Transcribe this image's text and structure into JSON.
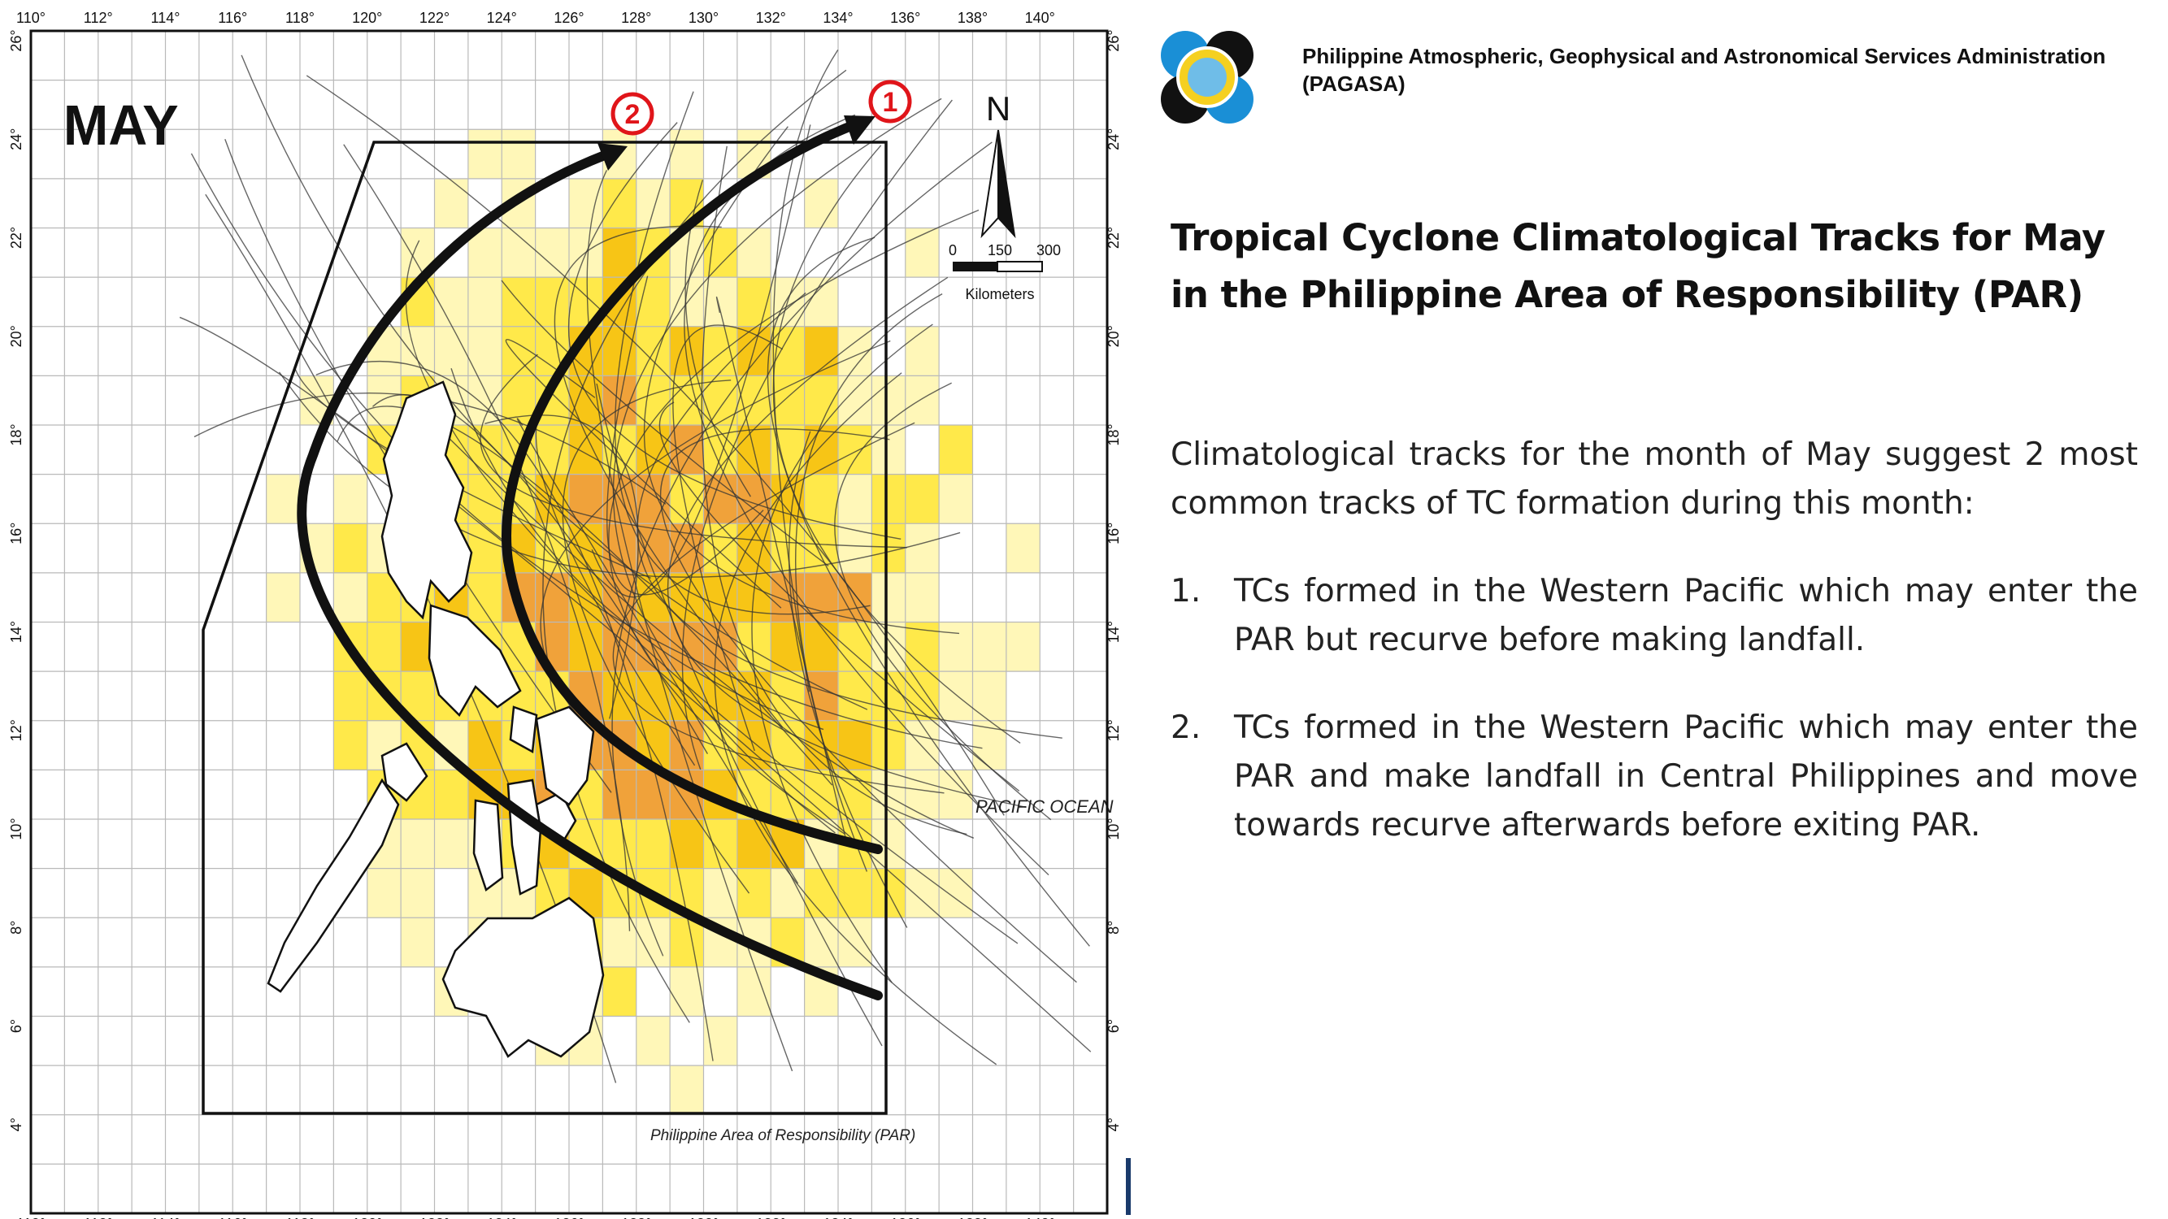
{
  "map": {
    "month_label": "MAY",
    "lon_ticks": [
      "110°",
      "112°",
      "114°",
      "116°",
      "118°",
      "120°",
      "122°",
      "124°",
      "126°",
      "128°",
      "130°",
      "132°",
      "134°",
      "136°",
      "138°",
      "140°"
    ],
    "lat_ticks": [
      "4°",
      "6°",
      "8°",
      "10°",
      "12°",
      "14°",
      "16°",
      "18°",
      "20°",
      "22°",
      "24°",
      "26°"
    ],
    "par_label": "Philippine Area of Responsibility (PAR)",
    "ocean_label": "PACIFIC OCEAN",
    "north_label": "N",
    "scale": {
      "ticks": [
        "0",
        "150",
        "300"
      ],
      "unit": "Kilometers"
    },
    "track_markers": [
      "1",
      "2"
    ],
    "colors": {
      "light": "#fff7b8",
      "medium": "#ffe94a",
      "strong": "#f7c516",
      "intense": "#f0a23a",
      "max": "#e07d3a",
      "marker": "#e0151a"
    }
  },
  "header": {
    "org_name": "Philippine Atmospheric, Geophysical and Astronomical Services Administration (PAGASA)",
    "logo": "pagasa-logo"
  },
  "title": {
    "line1": "Tropical Cyclone Climatological Tracks for May",
    "line2": "in the Philippine Area of Responsibility (PAR)"
  },
  "body": {
    "intro": "Climatological tracks for the month of May suggest 2 most common tracks of TC formation during this month:",
    "items": [
      {
        "num": "1.",
        "text": "TCs formed in the Western Pacific which may enter the PAR but recurve before making landfall."
      },
      {
        "num": "2.",
        "text": "TCs formed in the Western Pacific which may enter the PAR and make landfall in Central Philippines and move towards recurve afterwards before exiting PAR."
      }
    ]
  }
}
